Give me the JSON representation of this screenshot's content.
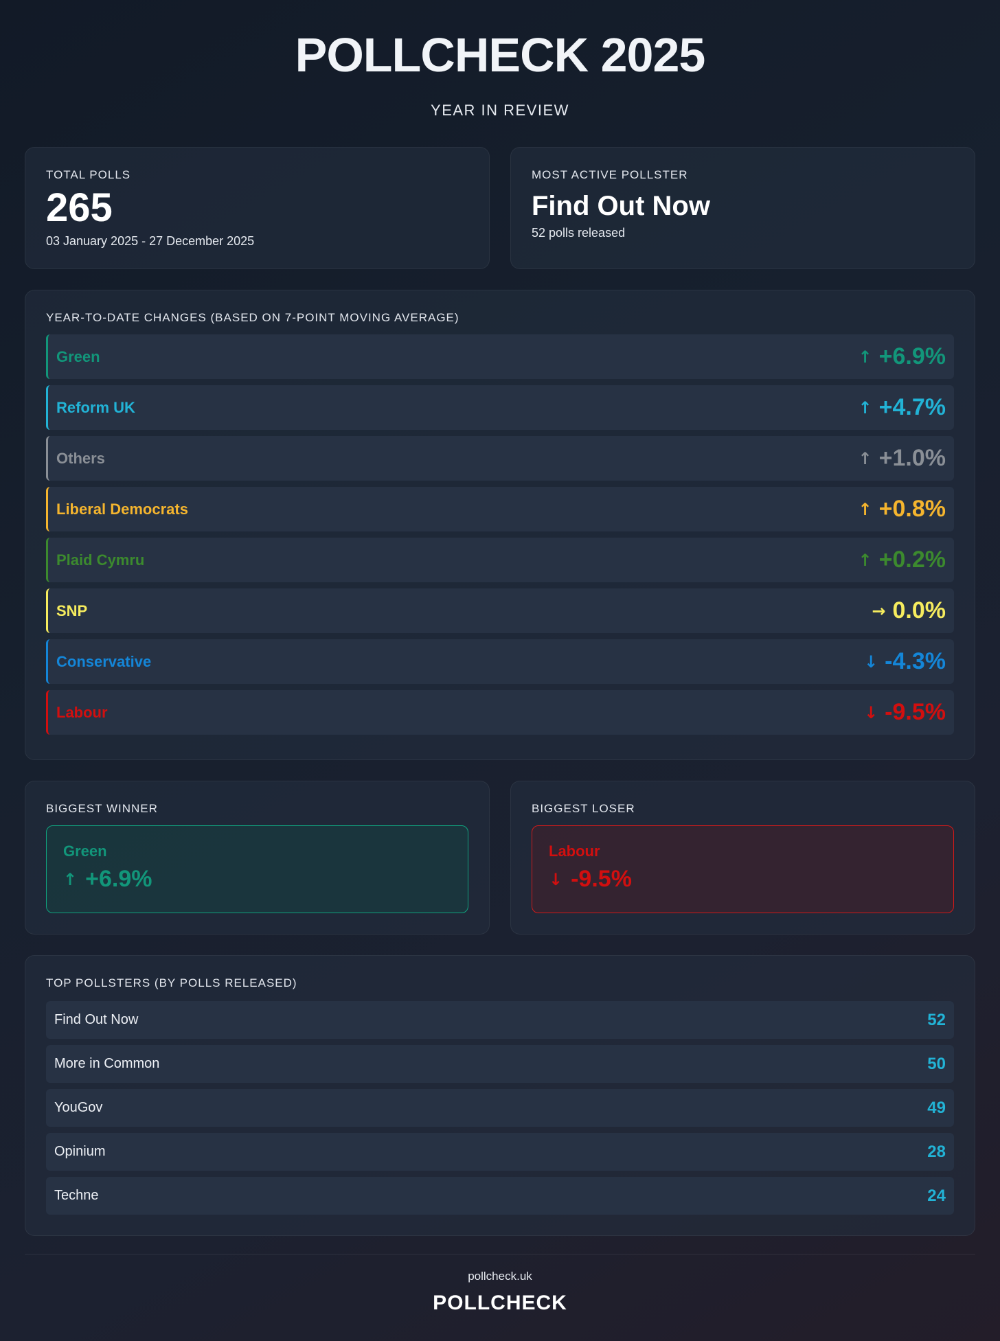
{
  "header": {
    "title": "POLLCHECK 2025",
    "subtitle": "YEAR IN REVIEW"
  },
  "stats": {
    "total_polls": {
      "label": "TOTAL POLLS",
      "value": "265",
      "range": "03 January 2025 - 27 December 2025"
    },
    "most_active": {
      "label": "MOST ACTIVE POLLSTER",
      "name": "Find Out Now",
      "sub": "52 polls released"
    }
  },
  "changes": {
    "label": "YEAR-TO-DATE CHANGES (BASED ON 7-POINT MOVING AVERAGE)",
    "items": [
      {
        "party": "Green",
        "value": "+6.9%",
        "arrow": "up-arrow",
        "color": "#12967a"
      },
      {
        "party": "Reform UK",
        "value": "+4.7%",
        "arrow": "up-arrow",
        "color": "#22b3d6"
      },
      {
        "party": "Others",
        "value": "+1.0%",
        "arrow": "up-arrow",
        "color": "#8a8f96"
      },
      {
        "party": "Liberal Democrats",
        "value": "+0.8%",
        "arrow": "up-arrow",
        "color": "#f5b52e"
      },
      {
        "party": "Plaid Cymru",
        "value": "+0.2%",
        "arrow": "up-arrow",
        "color": "#3c8a2e"
      },
      {
        "party": "SNP",
        "value": "0.0%",
        "arrow": "right-arrow",
        "color": "#f6ec5e"
      },
      {
        "party": "Conservative",
        "value": "-4.3%",
        "arrow": "down-arrow",
        "color": "#1486d8"
      },
      {
        "party": "Labour",
        "value": "-9.5%",
        "arrow": "down-arrow",
        "color": "#d20f0f"
      }
    ]
  },
  "winner": {
    "label": "BIGGEST WINNER",
    "party": "Green",
    "value": "+6.9%",
    "arrow": "up-arrow",
    "color": "#12967a"
  },
  "loser": {
    "label": "BIGGEST LOSER",
    "party": "Labour",
    "value": "-9.5%",
    "arrow": "down-arrow",
    "color": "#d20f0f"
  },
  "pollsters": {
    "label": "TOP POLLSTERS (BY POLLS RELEASED)",
    "items": [
      {
        "name": "Find Out Now",
        "count": "52"
      },
      {
        "name": "More in Common",
        "count": "50"
      },
      {
        "name": "YouGov",
        "count": "49"
      },
      {
        "name": "Opinium",
        "count": "28"
      },
      {
        "name": "Techne",
        "count": "24"
      }
    ]
  },
  "footer": {
    "url": "pollcheck.uk",
    "brand": "POLLCHECK"
  }
}
